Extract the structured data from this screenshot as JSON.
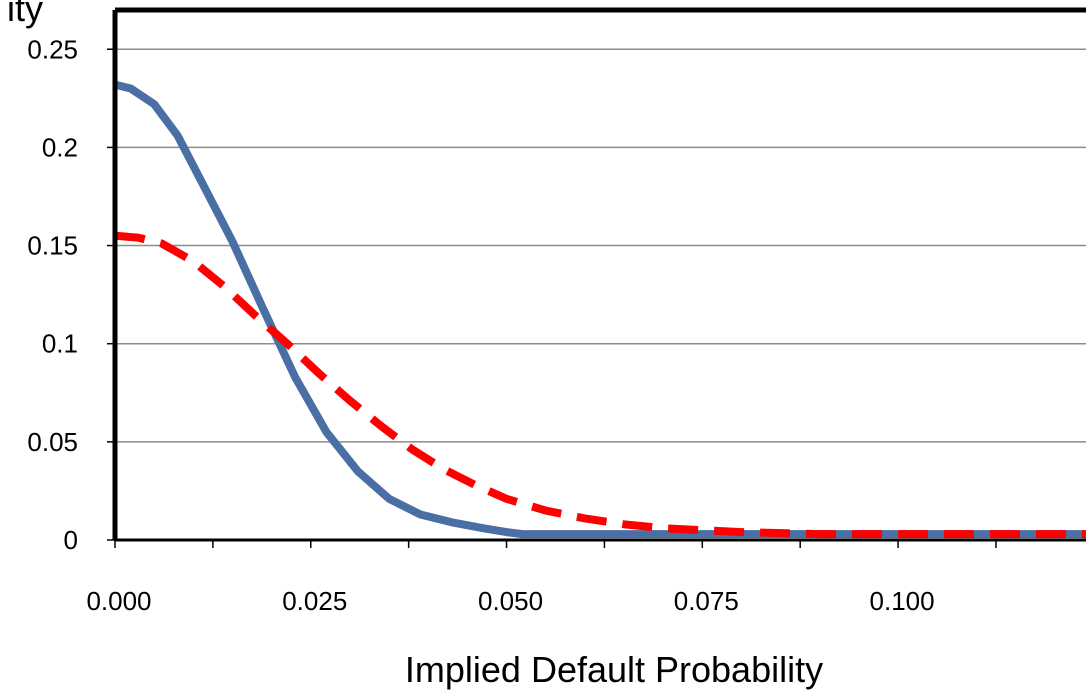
{
  "chart_data": {
    "type": "line",
    "title": "",
    "xlabel": "Implied Default Probability",
    "ylabel": "ity",
    "xlim": [
      0,
      0.124
    ],
    "ylim": [
      0,
      0.27
    ],
    "x_ticks": [
      0,
      0.0125,
      0.025,
      0.0375,
      0.05,
      0.0625,
      0.075,
      0.0875,
      0.1,
      0.1125
    ],
    "x_tick_labels": [
      {
        "value": 0,
        "label": "0.000"
      },
      {
        "value": 0.025,
        "label": "0.025"
      },
      {
        "value": 0.05,
        "label": "0.050"
      },
      {
        "value": 0.075,
        "label": "0.075"
      },
      {
        "value": 0.1,
        "label": "0.100"
      }
    ],
    "y_ticks": [
      {
        "value": 0,
        "label": "0"
      },
      {
        "value": 0.05,
        "label": "0.05"
      },
      {
        "value": 0.1,
        "label": "0.1"
      },
      {
        "value": 0.15,
        "label": "0.15"
      },
      {
        "value": 0.2,
        "label": "0.2"
      },
      {
        "value": 0.25,
        "label": "0.25"
      }
    ],
    "grid": "horizontal",
    "series": [
      {
        "color": "#4a6fa5",
        "style": "solid",
        "x": [
          0,
          0.002,
          0.005,
          0.008,
          0.011,
          0.015,
          0.019,
          0.023,
          0.027,
          0.031,
          0.035,
          0.039,
          0.043,
          0.047,
          0.05,
          0.052,
          0.06,
          0.075,
          0.09,
          0.105,
          0.124
        ],
        "values": [
          0.232,
          0.23,
          0.222,
          0.206,
          0.183,
          0.152,
          0.117,
          0.083,
          0.055,
          0.035,
          0.021,
          0.013,
          0.009,
          0.006,
          0.004,
          0.003,
          0.003,
          0.003,
          0.003,
          0.003,
          0.003
        ]
      },
      {
        "color": "#ff0000",
        "style": "dashed",
        "x": [
          0,
          0.003,
          0.006,
          0.01,
          0.014,
          0.018,
          0.022,
          0.026,
          0.03,
          0.034,
          0.038,
          0.042,
          0.046,
          0.05,
          0.055,
          0.06,
          0.065,
          0.07,
          0.075,
          0.08,
          0.09,
          0.1,
          0.11,
          0.124
        ],
        "values": [
          0.155,
          0.154,
          0.151,
          0.142,
          0.129,
          0.114,
          0.1,
          0.085,
          0.071,
          0.058,
          0.046,
          0.036,
          0.028,
          0.021,
          0.015,
          0.011,
          0.008,
          0.006,
          0.005,
          0.004,
          0.003,
          0.003,
          0.003,
          0.003
        ]
      }
    ]
  }
}
